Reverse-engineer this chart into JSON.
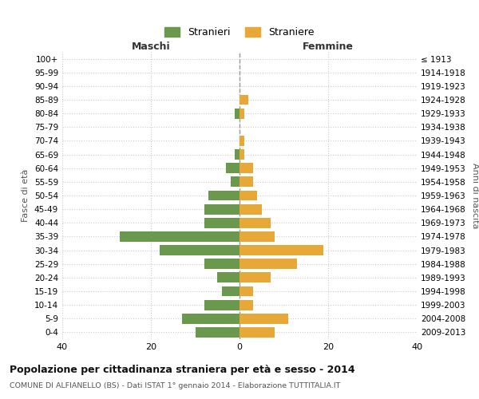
{
  "age_groups": [
    "0-4",
    "5-9",
    "10-14",
    "15-19",
    "20-24",
    "25-29",
    "30-34",
    "35-39",
    "40-44",
    "45-49",
    "50-54",
    "55-59",
    "60-64",
    "65-69",
    "70-74",
    "75-79",
    "80-84",
    "85-89",
    "90-94",
    "95-99",
    "100+"
  ],
  "birth_years": [
    "2009-2013",
    "2004-2008",
    "1999-2003",
    "1994-1998",
    "1989-1993",
    "1984-1988",
    "1979-1983",
    "1974-1978",
    "1969-1973",
    "1964-1968",
    "1959-1963",
    "1954-1958",
    "1949-1953",
    "1944-1948",
    "1939-1943",
    "1934-1938",
    "1929-1933",
    "1924-1928",
    "1919-1923",
    "1914-1918",
    "≤ 1913"
  ],
  "maschi": [
    10,
    13,
    8,
    4,
    5,
    8,
    18,
    27,
    8,
    8,
    7,
    2,
    3,
    1,
    0,
    0,
    1,
    0,
    0,
    0,
    0
  ],
  "femmine": [
    8,
    11,
    3,
    3,
    7,
    13,
    19,
    8,
    7,
    5,
    4,
    3,
    3,
    1,
    1,
    0,
    1,
    2,
    0,
    0,
    0
  ],
  "color_maschi": "#6a994e",
  "color_femmine": "#e8a838",
  "bg_color": "#ffffff",
  "grid_color": "#cccccc",
  "dashed_line_color": "#999999",
  "title": "Popolazione per cittadinanza straniera per età e sesso - 2014",
  "subtitle": "COMUNE DI ALFIANELLO (BS) - Dati ISTAT 1° gennaio 2014 - Elaborazione TUTTITALIA.IT",
  "xlabel_left": "Maschi",
  "xlabel_right": "Femmine",
  "ylabel_left": "Fasce di età",
  "ylabel_right": "Anni di nascita",
  "legend_maschi": "Stranieri",
  "legend_femmine": "Straniere",
  "xlim": 40
}
